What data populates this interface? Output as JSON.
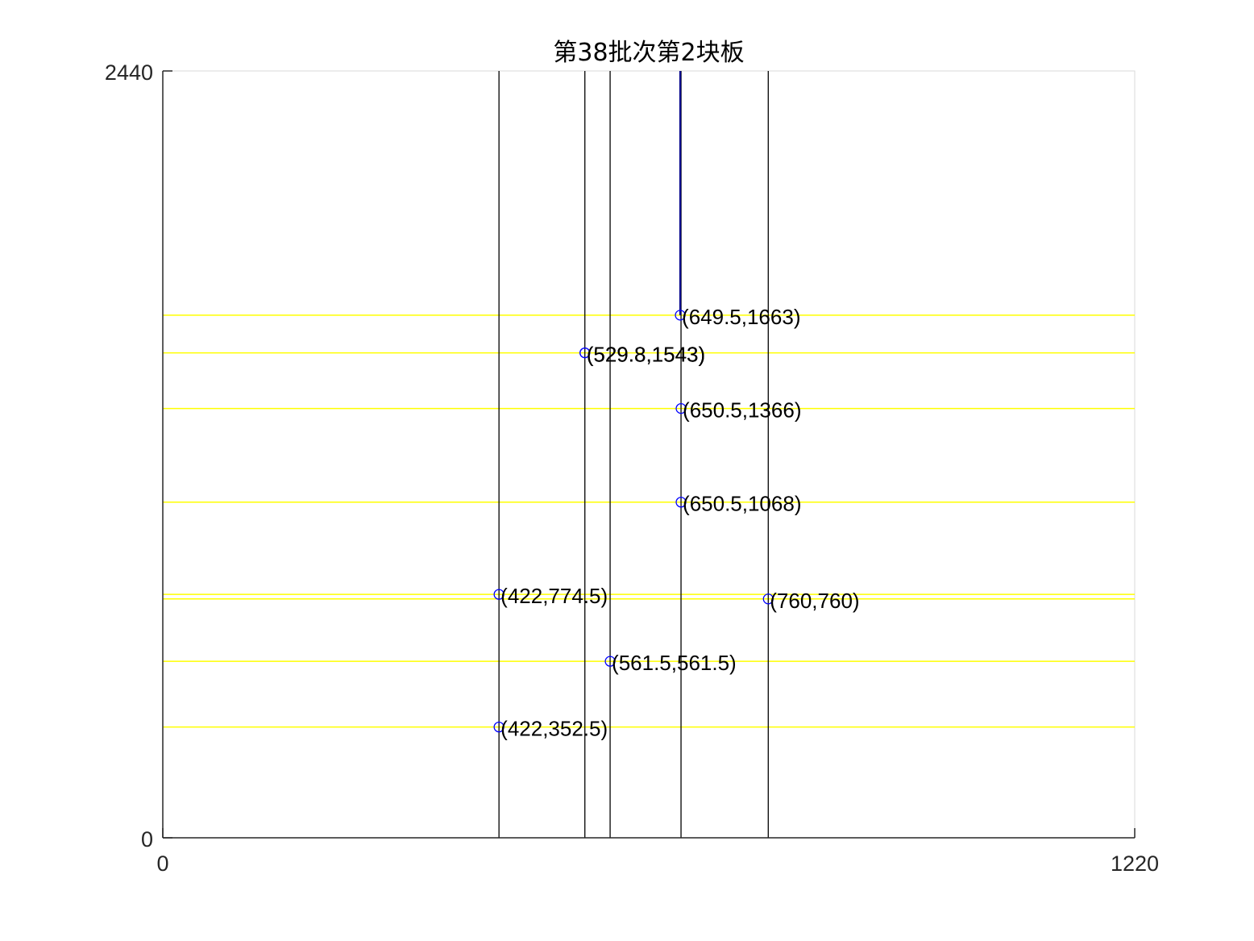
{
  "chart_data": {
    "type": "scatter",
    "title": "第38批次第2块板",
    "xlabel": "",
    "ylabel": "",
    "xlim": [
      0,
      1220
    ],
    "ylim": [
      0,
      2440
    ],
    "x_ticks": [
      "0",
      "1220"
    ],
    "y_ticks": [
      "0",
      "2440"
    ],
    "grid": false,
    "colors": {
      "vertical_cut": "#000000",
      "horizontal_cut": "#ffff00",
      "marker": "#0000ff",
      "highlight_line": "#00008b",
      "axis": "#262626",
      "box": "#d9d9d9"
    },
    "vertical_lines": [
      {
        "x": 422,
        "y0": 0,
        "y1": 2440
      },
      {
        "x": 529.8,
        "y0": 0,
        "y1": 2440
      },
      {
        "x": 561.5,
        "y0": 0,
        "y1": 2440
      },
      {
        "x": 650.5,
        "y0": 0,
        "y1": 2440
      },
      {
        "x": 760,
        "y0": 0,
        "y1": 2440
      }
    ],
    "highlight_segment": {
      "x": 649.5,
      "y0": 1663,
      "y1": 2440
    },
    "horizontal_lines": [
      1663,
      1543,
      1366,
      1068,
      774.5,
      760,
      561.5,
      352.5
    ],
    "points": [
      {
        "x": 649.5,
        "y": 1663,
        "label": "(649.5,1663)"
      },
      {
        "x": 529.8,
        "y": 1543,
        "label": "(529.8,1543)"
      },
      {
        "x": 529.8,
        "y": 1543,
        "label": "(529.8,1543)"
      },
      {
        "x": 650.5,
        "y": 1366,
        "label": "(650.5,1366)"
      },
      {
        "x": 650.5,
        "y": 1068,
        "label": "(650.5,1068)"
      },
      {
        "x": 422,
        "y": 774.5,
        "label": "(422,774.5)"
      },
      {
        "x": 760,
        "y": 760,
        "label": "(760,760)"
      },
      {
        "x": 561.5,
        "y": 561.5,
        "label": "(561.5,561.5)"
      },
      {
        "x": 422,
        "y": 352.5,
        "label": "(422,352.5)"
      }
    ]
  }
}
